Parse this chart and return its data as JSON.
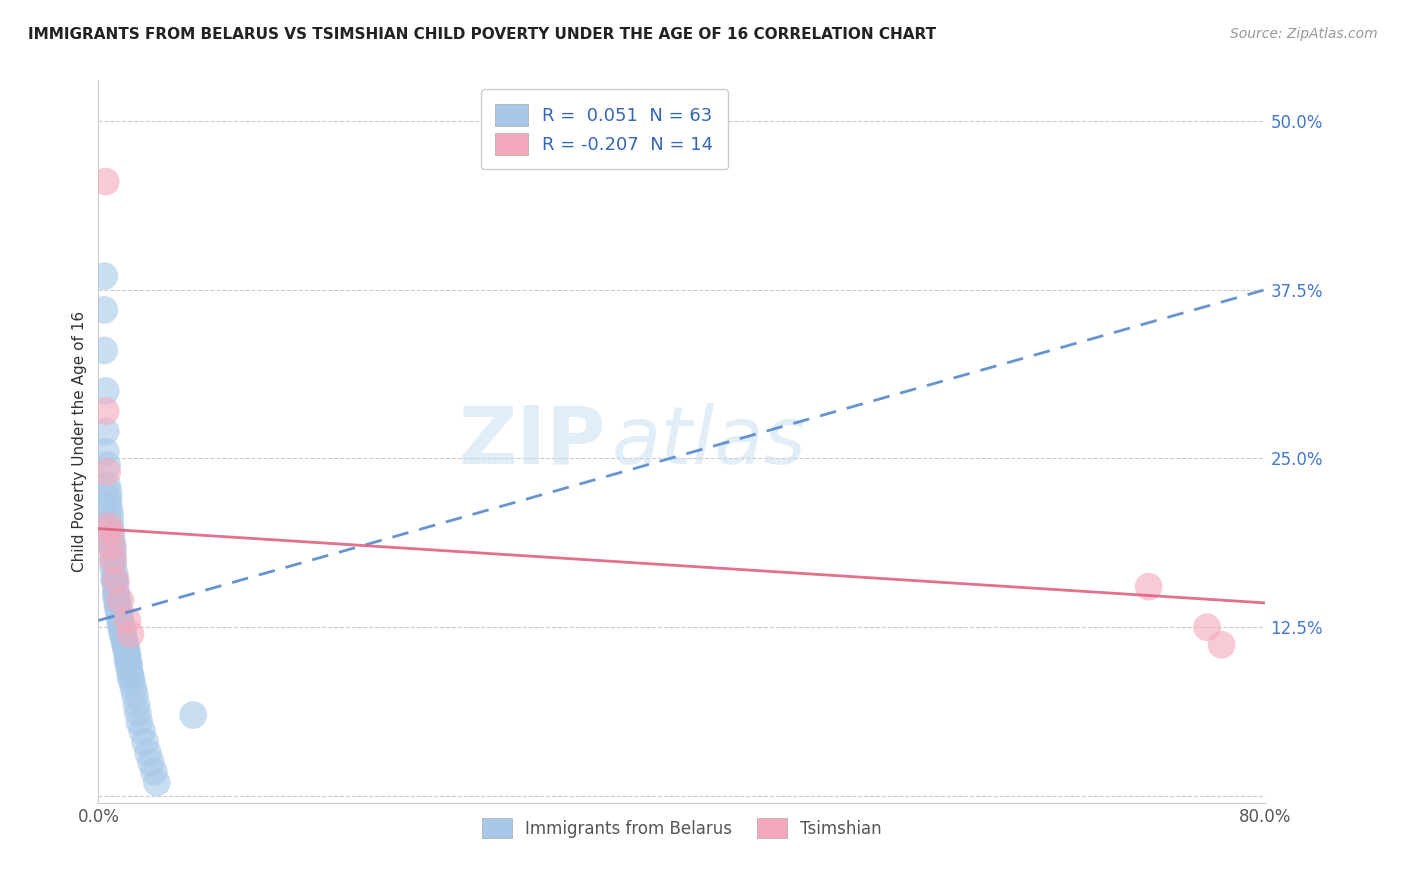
{
  "title": "IMMIGRANTS FROM BELARUS VS TSIMSHIAN CHILD POVERTY UNDER THE AGE OF 16 CORRELATION CHART",
  "source": "Source: ZipAtlas.com",
  "ylabel": "Child Poverty Under the Age of 16",
  "xlim": [
    0,
    0.8
  ],
  "ylim": [
    -0.005,
    0.53
  ],
  "xticks": [
    0.0,
    0.1,
    0.2,
    0.3,
    0.4,
    0.5,
    0.6,
    0.7,
    0.8
  ],
  "ytick_positions": [
    0.0,
    0.125,
    0.25,
    0.375,
    0.5
  ],
  "ytick_labels": [
    "",
    "12.5%",
    "25.0%",
    "37.5%",
    "50.0%"
  ],
  "watermark": "ZIPatlas",
  "legend_r_blue": "0.051",
  "legend_n_blue": "63",
  "legend_r_pink": "-0.207",
  "legend_n_pink": "14",
  "blue_color": "#a8c8e8",
  "pink_color": "#f4a8bc",
  "blue_line_color": "#5588cc",
  "pink_line_color": "#e06080",
  "blue_scatter_x": [
    0.004,
    0.004,
    0.004,
    0.005,
    0.005,
    0.005,
    0.006,
    0.006,
    0.007,
    0.007,
    0.007,
    0.008,
    0.008,
    0.008,
    0.009,
    0.009,
    0.009,
    0.01,
    0.01,
    0.01,
    0.01,
    0.011,
    0.011,
    0.011,
    0.012,
    0.012,
    0.012,
    0.013,
    0.013,
    0.013,
    0.014,
    0.014,
    0.015,
    0.015,
    0.015,
    0.016,
    0.016,
    0.017,
    0.017,
    0.018,
    0.018,
    0.019,
    0.019,
    0.02,
    0.02,
    0.02,
    0.021,
    0.021,
    0.022,
    0.022,
    0.023,
    0.024,
    0.025,
    0.026,
    0.027,
    0.028,
    0.03,
    0.032,
    0.034,
    0.036,
    0.038,
    0.04,
    0.065
  ],
  "blue_scatter_y": [
    0.385,
    0.36,
    0.33,
    0.3,
    0.27,
    0.255,
    0.245,
    0.23,
    0.225,
    0.22,
    0.215,
    0.21,
    0.205,
    0.2,
    0.195,
    0.19,
    0.185,
    0.185,
    0.18,
    0.175,
    0.17,
    0.165,
    0.16,
    0.16,
    0.155,
    0.15,
    0.148,
    0.145,
    0.143,
    0.14,
    0.138,
    0.135,
    0.133,
    0.13,
    0.128,
    0.125,
    0.122,
    0.12,
    0.118,
    0.115,
    0.113,
    0.11,
    0.108,
    0.105,
    0.103,
    0.1,
    0.098,
    0.095,
    0.09,
    0.088,
    0.085,
    0.08,
    0.075,
    0.068,
    0.062,
    0.055,
    0.048,
    0.04,
    0.032,
    0.025,
    0.018,
    0.01,
    0.06
  ],
  "pink_scatter_x": [
    0.005,
    0.005,
    0.006,
    0.007,
    0.008,
    0.009,
    0.01,
    0.012,
    0.015,
    0.02,
    0.022,
    0.72,
    0.76,
    0.77
  ],
  "pink_scatter_y": [
    0.455,
    0.285,
    0.24,
    0.2,
    0.195,
    0.185,
    0.175,
    0.16,
    0.145,
    0.13,
    0.12,
    0.155,
    0.125,
    0.112
  ],
  "blue_trend_start_x": 0.0,
  "blue_trend_start_y": 0.13,
  "blue_trend_end_x": 0.8,
  "blue_trend_end_y": 0.375,
  "pink_trend_start_x": 0.0,
  "pink_trend_start_y": 0.198,
  "pink_trend_end_x": 0.8,
  "pink_trend_end_y": 0.143
}
